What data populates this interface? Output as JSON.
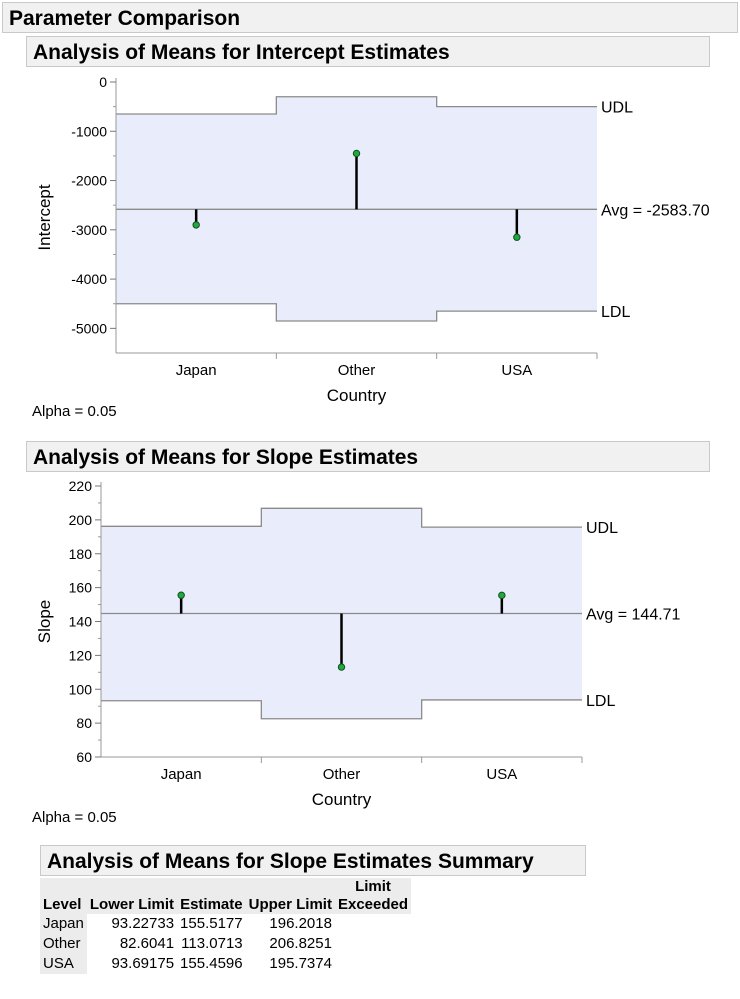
{
  "page_title": "Parameter Comparison",
  "colors": {
    "band_fill": "#e9edfb",
    "limit_line": "#8a8a8a",
    "marker_fill": "#1faa3c",
    "stem": "#000000"
  },
  "chart_data": [
    {
      "type": "analysis-of-means",
      "title": "Analysis of Means for Intercept Estimates",
      "xlabel": "Country",
      "ylabel": "Intercept",
      "categories": [
        "Japan",
        "Other",
        "USA"
      ],
      "ylim": [
        -5500,
        0
      ],
      "yticks": [
        0,
        -1000,
        -2000,
        -3000,
        -4000,
        -5000
      ],
      "avg": -2583.7,
      "avg_label": "Avg = -2583.70",
      "udl_label": "UDL",
      "ldl_label": "LDL",
      "estimates": [
        -2900,
        -1450,
        -3150
      ],
      "udl": [
        -650,
        -300,
        -500
      ],
      "ldl": [
        -4500,
        -4850,
        -4650
      ],
      "alpha_label": "Alpha = 0.05"
    },
    {
      "type": "analysis-of-means",
      "title": "Analysis of Means for Slope Estimates",
      "xlabel": "Country",
      "ylabel": "Slope",
      "categories": [
        "Japan",
        "Other",
        "USA"
      ],
      "ylim": [
        60,
        220
      ],
      "yticks": [
        220,
        200,
        180,
        160,
        140,
        120,
        100,
        80,
        60
      ],
      "avg": 144.71,
      "avg_label": "Avg = 144.71",
      "udl_label": "UDL",
      "ldl_label": "LDL",
      "estimates": [
        155.5177,
        113.0713,
        155.4596
      ],
      "udl": [
        196.2018,
        206.8251,
        195.7374
      ],
      "ldl": [
        93.22733,
        82.6041,
        93.69175
      ],
      "alpha_label": "Alpha = 0.05"
    }
  ],
  "summary": {
    "title": "Analysis of Means for Slope Estimates Summary",
    "headers": {
      "level": "Level",
      "lower": "Lower Limit",
      "estimate": "Estimate",
      "upper": "Upper Limit",
      "limit_top": "Limit",
      "limit_bottom": "Exceeded"
    },
    "rows": [
      {
        "level": "Japan",
        "lower": "93.22733",
        "estimate": "155.5177",
        "upper": "196.2018",
        "exceeded": ""
      },
      {
        "level": "Other",
        "lower": "82.6041",
        "estimate": "113.0713",
        "upper": "206.8251",
        "exceeded": ""
      },
      {
        "level": "USA",
        "lower": "93.69175",
        "estimate": "155.4596",
        "upper": "195.7374",
        "exceeded": ""
      }
    ]
  }
}
